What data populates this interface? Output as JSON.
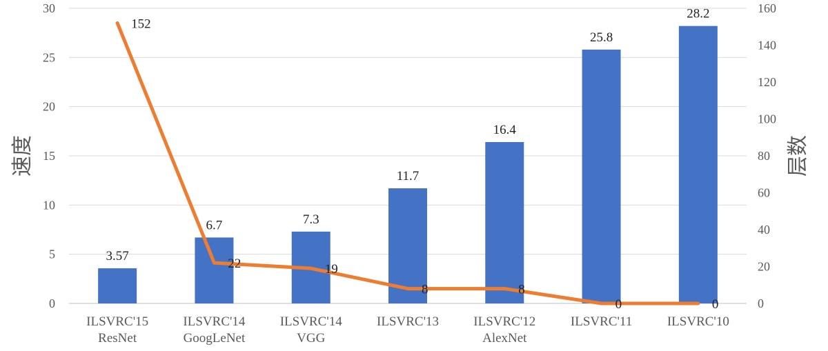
{
  "chart_data": {
    "type": "bar+line",
    "categories": [
      [
        "ILSVRC'15",
        "ResNet"
      ],
      [
        "ILSVRC'14",
        "GoogLeNet"
      ],
      [
        "ILSVRC'14",
        "VGG"
      ],
      [
        "ILSVRC'13"
      ],
      [
        "ILSVRC'12",
        "AlexNet"
      ],
      [
        "ILSVRC'11"
      ],
      [
        "ILSVRC'10"
      ]
    ],
    "series": [
      {
        "type": "bar",
        "axis": "left",
        "color": "#4472C4",
        "values": [
          3.57,
          6.7,
          7.3,
          11.7,
          16.4,
          25.8,
          28.2
        ],
        "labels": [
          "3.57",
          "6.7",
          "7.3",
          "11.7",
          "16.4",
          "25.8",
          "28.2"
        ]
      },
      {
        "type": "line",
        "axis": "right",
        "color": "#ED7D31",
        "values": [
          152,
          22,
          19,
          8,
          8,
          0,
          0
        ],
        "labels": [
          "152",
          "22",
          "19",
          "8",
          "8",
          "0",
          "0"
        ]
      }
    ],
    "ylabel_left": "速度",
    "ylabel_right": "层数",
    "ylim_left": [
      0,
      30
    ],
    "yticks_left": [
      "0",
      "5",
      "10",
      "15",
      "20",
      "25",
      "30"
    ],
    "ylim_right": [
      0,
      160
    ],
    "yticks_right": [
      "0",
      "20",
      "40",
      "60",
      "80",
      "100",
      "120",
      "140",
      "160"
    ],
    "grid": true,
    "legend": "none"
  }
}
